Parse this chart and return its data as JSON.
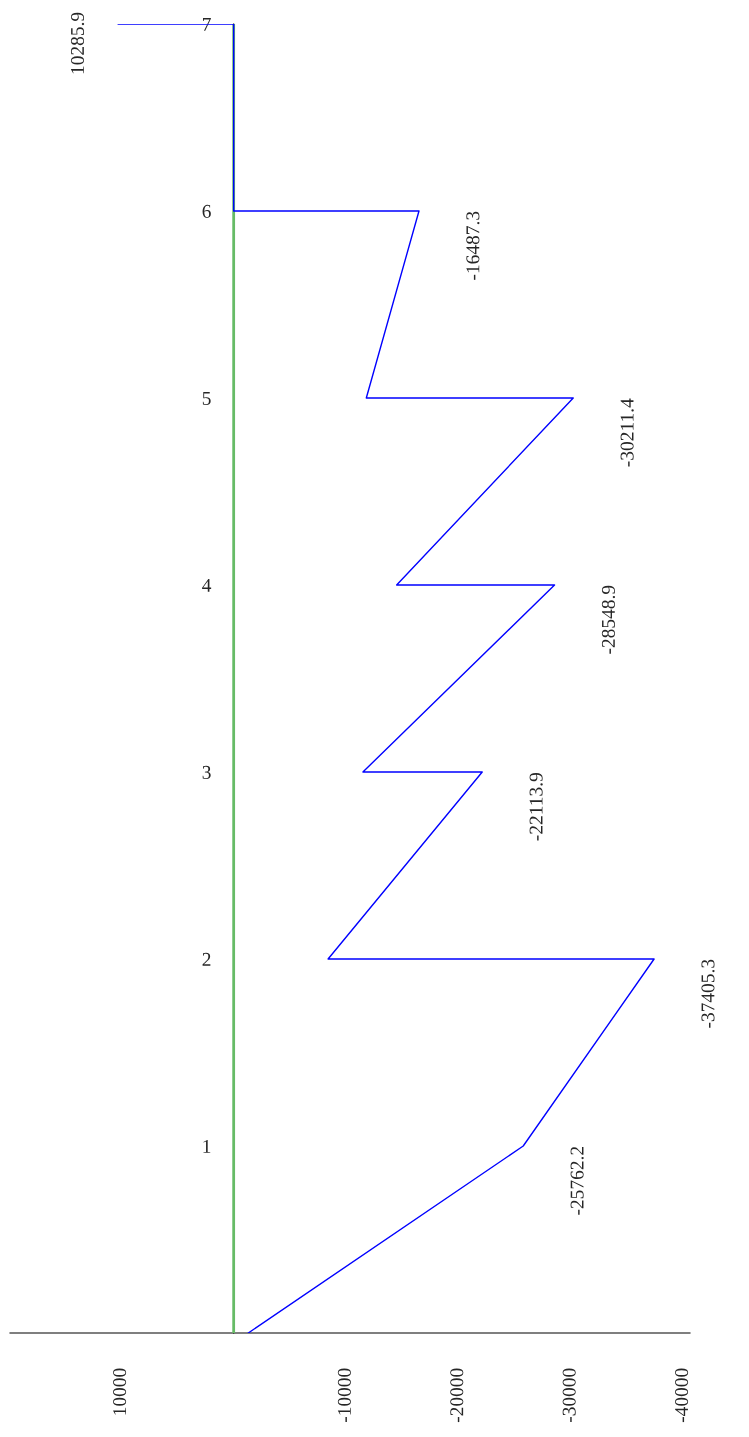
{
  "chart_data": {
    "type": "line",
    "orientation": "horizontal",
    "x": [
      0,
      1,
      2,
      2,
      3,
      3,
      4,
      4,
      5,
      5,
      6,
      6,
      7,
      7
    ],
    "series": [
      {
        "color": "#0000ff",
        "values": [
          -1300,
          -25762.2,
          -37405.3,
          -8400,
          -22113.9,
          -11500,
          -28548.9,
          -14500,
          -30211.4,
          -11800,
          -16487.3,
          0,
          0,
          10285.9
        ],
        "value_labels": [
          null,
          "-25762.2",
          "-37405.3",
          null,
          "-22113.9",
          null,
          "-28548.9",
          null,
          "-30211.4",
          null,
          "-16487.3",
          null,
          null,
          "10285.9"
        ]
      }
    ],
    "xlim": [
      19900,
      -40600
    ],
    "xticks": [
      10000,
      -10000,
      -20000,
      -30000,
      -40000
    ],
    "ylim": [
      0,
      7
    ],
    "yticks": [
      {
        "value": 0,
        "label": null
      },
      1,
      2,
      3,
      4,
      5,
      6,
      7
    ],
    "ref_lines": [
      {
        "axis": "x",
        "value": 0,
        "color": "#66bb66"
      }
    ],
    "grid": false,
    "legend": false,
    "marker": "none",
    "line_style": "solid"
  }
}
